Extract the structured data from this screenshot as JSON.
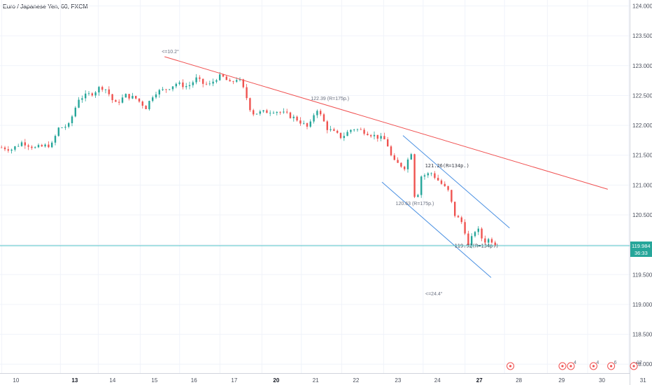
{
  "header": {
    "title": "Euro / Japanese Yen, 60, FXCM"
  },
  "chart_data": {
    "type": "candlestick",
    "y_ticks": [
      "124.000",
      "123.500",
      "123.000",
      "122.500",
      "122.000",
      "121.500",
      "121.000",
      "120.500",
      "120.000",
      "119.500",
      "119.000",
      "118.500",
      "118.000"
    ],
    "y_range": [
      117.85,
      124.1
    ],
    "x_ticks": [
      {
        "label": "10",
        "bold": false,
        "bar": 2
      },
      {
        "label": "13",
        "bold": true,
        "bar": 72
      },
      {
        "label": "14",
        "bold": false,
        "bar": 117
      },
      {
        "label": "15",
        "bold": false,
        "bar": 167
      },
      {
        "label": "16",
        "bold": false,
        "bar": 214
      },
      {
        "label": "17",
        "bold": false,
        "bar": 262
      },
      {
        "label": "20",
        "bold": true,
        "bar": 312
      },
      {
        "label": "21",
        "bold": false,
        "bar": 359
      },
      {
        "label": "22",
        "bold": false,
        "bar": 407
      },
      {
        "label": "23",
        "bold": false,
        "bar": 457
      },
      {
        "label": "24",
        "bold": false,
        "bar": 504
      },
      {
        "label": "27",
        "bold": true,
        "bar": 554
      },
      {
        "label": "28",
        "bold": false,
        "bar": 601
      },
      {
        "label": "29",
        "bold": false,
        "bar": 652
      },
      {
        "label": "30",
        "bold": false,
        "bar": 700
      },
      {
        "label": "31",
        "bold": false,
        "bar": 749
      }
    ],
    "price_path": [
      [
        0,
        121.63
      ],
      [
        12,
        121.6
      ],
      [
        25,
        121.72
      ],
      [
        40,
        121.62
      ],
      [
        60,
        121.68
      ],
      [
        68,
        121.95
      ],
      [
        80,
        122.0
      ],
      [
        92,
        122.45
      ],
      [
        110,
        122.55
      ],
      [
        118,
        122.65
      ],
      [
        125,
        122.6
      ],
      [
        135,
        122.35
      ],
      [
        148,
        122.5
      ],
      [
        160,
        122.45
      ],
      [
        172,
        122.3
      ],
      [
        182,
        122.55
      ],
      [
        195,
        122.6
      ],
      [
        208,
        122.7
      ],
      [
        222,
        122.65
      ],
      [
        232,
        122.78
      ],
      [
        240,
        122.7
      ],
      [
        248,
        122.68
      ],
      [
        258,
        122.82
      ],
      [
        265,
        122.8
      ],
      [
        272,
        122.7
      ],
      [
        282,
        122.8
      ],
      [
        290,
        122.55
      ],
      [
        298,
        122.2
      ],
      [
        312,
        122.22
      ],
      [
        325,
        122.25
      ],
      [
        340,
        122.18
      ],
      [
        352,
        122.1
      ],
      [
        366,
        121.95
      ],
      [
        375,
        122.3
      ],
      [
        388,
        121.95
      ],
      [
        405,
        121.8
      ],
      [
        418,
        121.95
      ],
      [
        432,
        121.9
      ],
      [
        445,
        121.82
      ],
      [
        458,
        121.75
      ],
      [
        466,
        121.4
      ],
      [
        480,
        121.3
      ],
      [
        488,
        121.55
      ],
      [
        493,
        120.65
      ],
      [
        500,
        121.15
      ],
      [
        512,
        121.2
      ],
      [
        522,
        121.05
      ],
      [
        532,
        120.9
      ],
      [
        540,
        120.5
      ],
      [
        550,
        120.35
      ],
      [
        556,
        119.98
      ],
      [
        566,
        120.3
      ],
      [
        574,
        120.05
      ],
      [
        582,
        120.1
      ],
      [
        590,
        119.98
      ]
    ],
    "current_price": "119.984",
    "countdown": "36:33",
    "trendlines": [
      {
        "from": [
          196,
          123.15
        ],
        "to": [
          724,
          120.93
        ],
        "color": "#f05050",
        "label": "<=10.2°"
      },
      {
        "from": [
          480,
          121.83
        ],
        "to": [
          607,
          120.28
        ],
        "color": "#4a90e2",
        "label": ""
      },
      {
        "from": [
          455,
          121.05
        ],
        "to": [
          585,
          119.45
        ],
        "color": "#4a90e2",
        "label": "<=24.4°"
      }
    ],
    "annotations": [
      {
        "label": "122.39 (R=175p.)",
        "at": [
          392,
          122.39
        ],
        "dark": false
      },
      {
        "label": "121.26(R=134p.)",
        "at": [
          528,
          121.26
        ],
        "dark": true
      },
      {
        "label": "120.63 (R=175p.)",
        "at": [
          493,
          120.63
        ],
        "dark": false
      },
      {
        "label": "119.92(R=134p.)",
        "at": [
          563,
          119.92
        ],
        "dark": true
      }
    ],
    "events": [
      {
        "bar": 608,
        "count": ""
      },
      {
        "bar": 670,
        "count": ""
      },
      {
        "bar": 680,
        "count": "4"
      },
      {
        "bar": 707,
        "count": "4"
      },
      {
        "bar": 728,
        "count": "6"
      },
      {
        "bar": 755,
        "count": "12"
      }
    ]
  }
}
